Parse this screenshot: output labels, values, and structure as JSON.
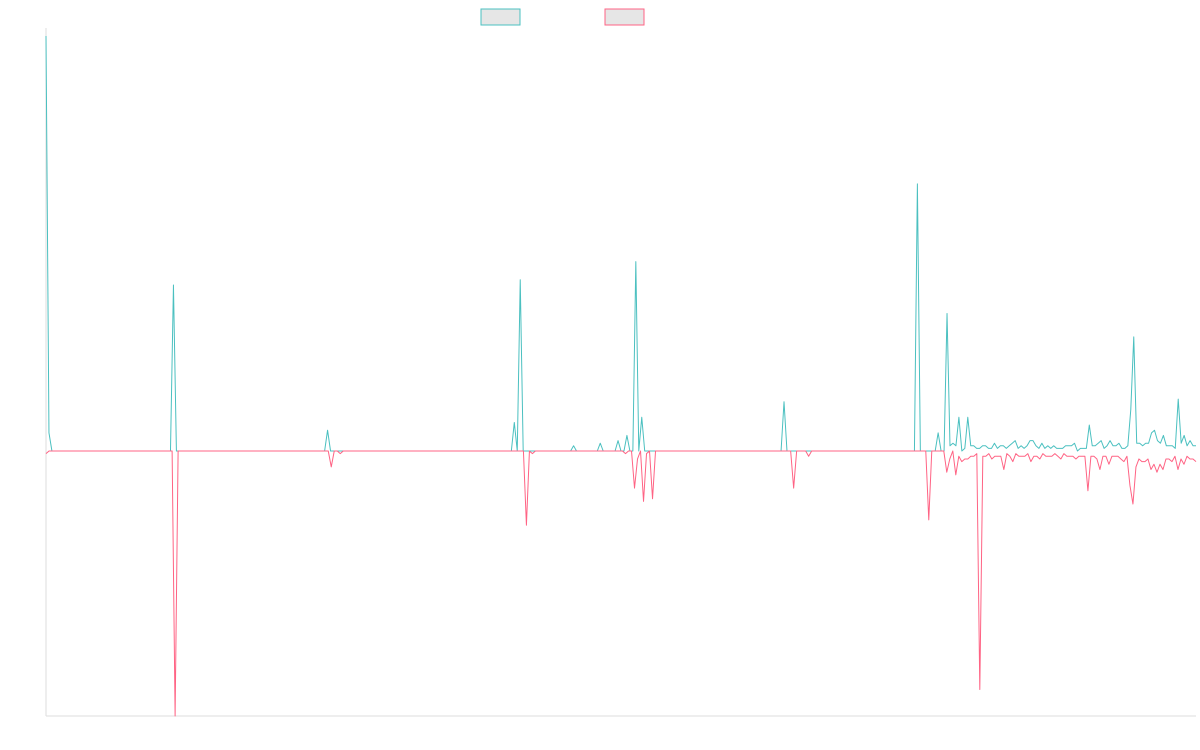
{
  "chart_data": {
    "type": "line",
    "title": "",
    "xlabel": "",
    "ylabel": "",
    "grid": false,
    "legend_position": "top-center",
    "ylim": [
      -100,
      160
    ],
    "series": [
      {
        "color": "#4bc0c0",
        "fill": "#e6e6e6",
        "values": [
          160,
          7,
          0,
          0,
          0,
          0,
          0,
          0,
          0,
          0,
          0,
          0,
          0,
          0,
          0,
          0,
          0,
          0,
          0,
          0,
          0,
          0,
          0,
          0,
          0,
          0,
          0,
          0,
          0,
          0,
          0,
          0,
          0,
          0,
          0,
          0,
          0,
          0,
          0,
          0,
          0,
          0,
          0,
          64,
          0,
          0,
          0,
          0,
          0,
          0,
          0,
          0,
          0,
          0,
          0,
          0,
          0,
          0,
          0,
          0,
          0,
          0,
          0,
          0,
          0,
          0,
          0,
          0,
          0,
          0,
          0,
          0,
          0,
          0,
          0,
          0,
          0,
          0,
          0,
          0,
          0,
          0,
          0,
          0,
          0,
          0,
          0,
          0,
          0,
          0,
          0,
          0,
          0,
          0,
          0,
          8,
          0,
          0,
          0,
          0,
          0,
          0,
          0,
          0,
          0,
          0,
          0,
          0,
          0,
          0,
          0,
          0,
          0,
          0,
          0,
          0,
          0,
          0,
          0,
          0,
          0,
          0,
          0,
          0,
          0,
          0,
          0,
          0,
          0,
          0,
          0,
          0,
          0,
          0,
          0,
          0,
          0,
          0,
          0,
          0,
          0,
          0,
          0,
          0,
          0,
          0,
          0,
          0,
          0,
          0,
          0,
          0,
          0,
          0,
          0,
          0,
          0,
          0,
          11,
          0,
          66,
          0,
          0,
          0,
          0,
          0,
          0,
          0,
          0,
          0,
          0,
          0,
          0,
          0,
          0,
          0,
          0,
          0,
          2,
          0,
          0,
          0,
          0,
          0,
          0,
          0,
          0,
          3,
          0,
          0,
          0,
          0,
          0,
          4,
          0,
          0,
          6,
          0,
          0,
          73,
          0,
          13,
          0,
          0,
          0,
          0,
          0,
          0,
          0,
          0,
          0,
          0,
          0,
          0,
          0,
          0,
          0,
          0,
          0,
          0,
          0,
          0,
          0,
          0,
          0,
          0,
          0,
          0,
          0,
          0,
          0,
          0,
          0,
          0,
          0,
          0,
          0,
          0,
          0,
          0,
          0,
          0,
          0,
          0,
          0,
          0,
          0,
          0,
          0,
          19,
          0,
          0,
          0,
          0,
          0,
          0,
          0,
          0,
          0,
          0,
          0,
          0,
          0,
          0,
          0,
          0,
          0,
          0,
          0,
          0,
          0,
          0,
          0,
          0,
          0,
          0,
          0,
          0,
          0,
          0,
          0,
          0,
          0,
          0,
          0,
          0,
          0,
          0,
          0,
          0,
          0,
          0,
          0,
          0,
          103,
          0,
          0,
          0,
          0,
          0,
          0,
          7,
          0,
          0,
          53,
          2,
          3,
          2,
          13,
          0,
          1,
          13,
          2,
          2,
          1,
          1,
          2,
          2,
          1,
          1,
          3,
          1,
          2,
          2,
          1,
          2,
          3,
          4,
          1,
          2,
          1,
          2,
          4,
          4,
          2,
          1,
          3,
          1,
          2,
          1,
          2,
          1,
          1,
          1,
          2,
          2,
          2,
          3,
          0,
          1,
          1,
          1,
          10,
          2,
          2,
          3,
          4,
          1,
          2,
          4,
          2,
          2,
          3,
          1,
          1,
          2,
          16,
          44,
          3,
          3,
          2,
          3,
          3,
          7,
          8,
          4,
          3,
          6,
          2,
          2,
          2,
          1,
          20,
          3,
          6,
          2,
          4,
          2,
          2
        ]
      },
      {
        "color": "#ff6384",
        "fill": "#e6e6e6",
        "values": [
          -1,
          0,
          0,
          0,
          0,
          0,
          0,
          0,
          0,
          0,
          0,
          0,
          0,
          0,
          0,
          0,
          0,
          0,
          0,
          0,
          0,
          0,
          0,
          0,
          0,
          0,
          0,
          0,
          0,
          0,
          0,
          0,
          0,
          0,
          0,
          0,
          0,
          0,
          0,
          0,
          0,
          0,
          0,
          -100,
          0,
          0,
          0,
          0,
          0,
          0,
          0,
          0,
          0,
          0,
          0,
          0,
          0,
          0,
          0,
          0,
          0,
          0,
          0,
          0,
          0,
          0,
          0,
          0,
          0,
          0,
          0,
          0,
          0,
          0,
          0,
          0,
          0,
          0,
          0,
          0,
          0,
          0,
          0,
          0,
          0,
          0,
          0,
          0,
          0,
          0,
          0,
          0,
          0,
          0,
          0,
          -6,
          0,
          0,
          -1,
          0,
          0,
          0,
          0,
          0,
          0,
          0,
          0,
          0,
          0,
          0,
          0,
          0,
          0,
          0,
          0,
          0,
          0,
          0,
          0,
          0,
          0,
          0,
          0,
          0,
          0,
          0,
          0,
          0,
          0,
          0,
          0,
          0,
          0,
          0,
          0,
          0,
          0,
          0,
          0,
          0,
          0,
          0,
          0,
          0,
          0,
          0,
          0,
          0,
          0,
          0,
          0,
          0,
          0,
          0,
          0,
          0,
          0,
          0,
          0,
          0,
          -28,
          0,
          -1,
          0,
          0,
          0,
          0,
          0,
          0,
          0,
          0,
          0,
          0,
          0,
          0,
          0,
          0,
          0,
          0,
          0,
          0,
          0,
          0,
          0,
          0,
          0,
          0,
          0,
          0,
          0,
          0,
          0,
          0,
          -1,
          0,
          0,
          -14,
          -3,
          0,
          -19,
          -1,
          0,
          -18,
          0,
          0,
          0,
          0,
          0,
          0,
          0,
          0,
          0,
          0,
          0,
          0,
          0,
          0,
          0,
          0,
          0,
          0,
          0,
          0,
          0,
          0,
          0,
          0,
          0,
          0,
          0,
          0,
          0,
          0,
          0,
          0,
          0,
          0,
          0,
          0,
          0,
          0,
          0,
          0,
          0,
          0,
          0,
          0,
          0,
          0,
          -14,
          0,
          0,
          0,
          0,
          -2,
          0,
          0,
          0,
          0,
          0,
          0,
          0,
          0,
          0,
          0,
          0,
          0,
          0,
          0,
          0,
          0,
          0,
          0,
          0,
          0,
          0,
          0,
          0,
          0,
          0,
          0,
          0,
          0,
          0,
          0,
          0,
          0,
          0,
          0,
          0,
          0,
          0,
          0,
          0,
          -26,
          0,
          0,
          0,
          0,
          0,
          -8,
          -3,
          0,
          -9,
          -2,
          -4,
          -3,
          -3,
          -2,
          -2,
          -1,
          -90,
          -2,
          -2,
          -1,
          -3,
          -2,
          -2,
          -2,
          -7,
          -1,
          -2,
          -4,
          -1,
          -2,
          -2,
          -2,
          -1,
          -4,
          -2,
          -2,
          -3,
          -1,
          -2,
          -2,
          -2,
          -1,
          -2,
          -3,
          -1,
          -2,
          -2,
          -2,
          -3,
          -2,
          -2,
          -2,
          -15,
          -2,
          -2,
          -3,
          -7,
          -2,
          -2,
          -5,
          -2,
          -2,
          -2,
          -3,
          -4,
          -2,
          -13,
          -20,
          -6,
          -3,
          -4,
          -4,
          -3,
          -7,
          -5,
          -8,
          -5,
          -7,
          -3,
          -3,
          -4,
          -2,
          -7,
          -3,
          -5,
          -2,
          -3,
          -3,
          -4
        ]
      }
    ]
  }
}
